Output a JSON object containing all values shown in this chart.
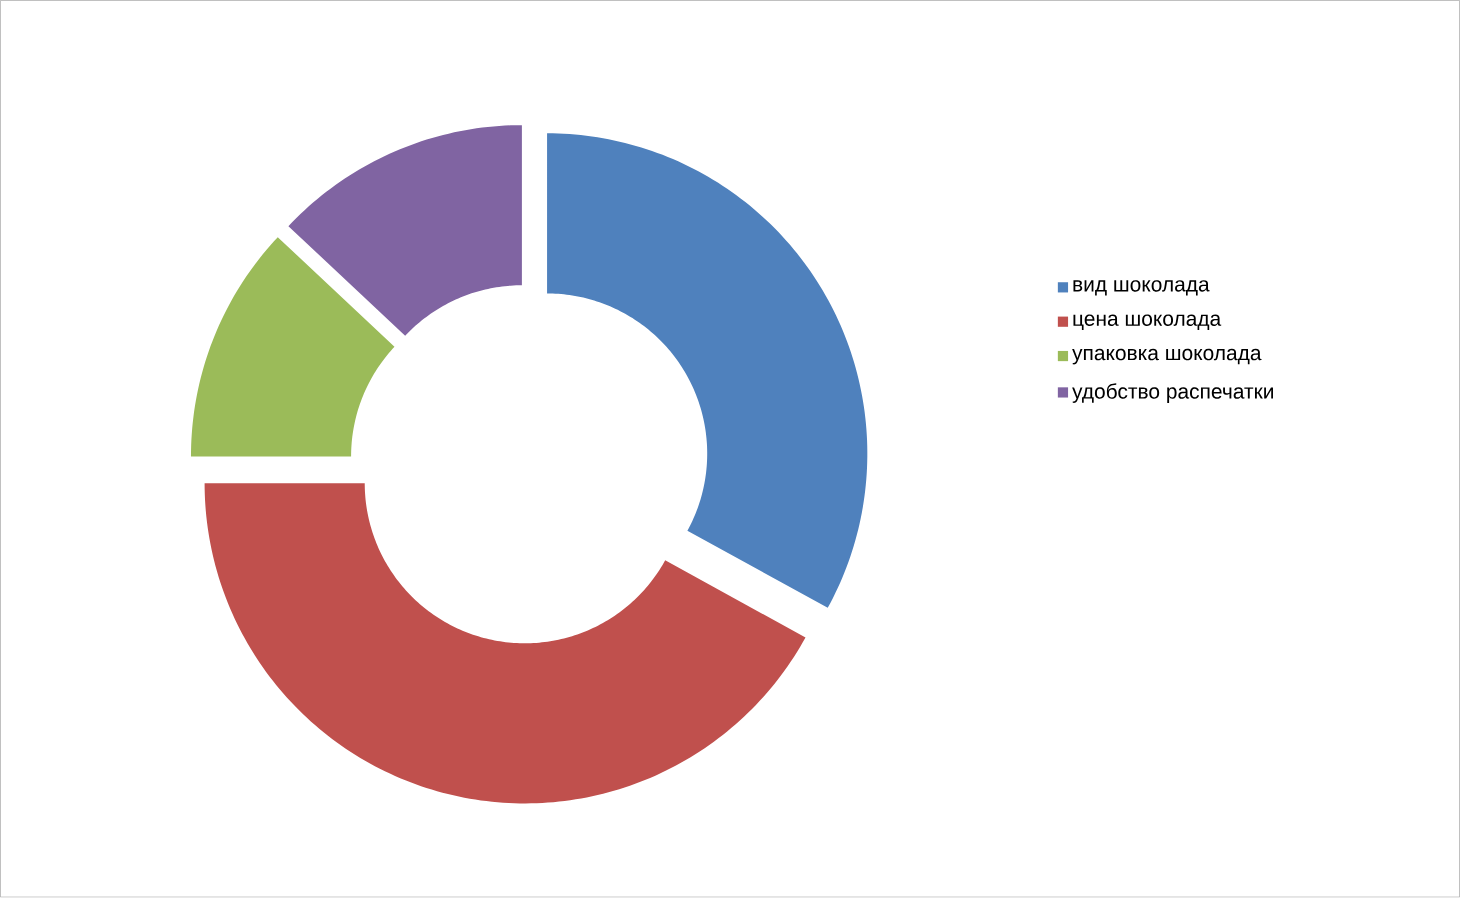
{
  "chart_data": {
    "type": "donut",
    "categories": [
      "вид шоколада",
      "цена шоколада",
      "упаковка шоколада",
      "удобство распечатки"
    ],
    "values": [
      33,
      42,
      12,
      13
    ],
    "colors": [
      "#4f81bd",
      "#c0504d",
      "#9bbb59",
      "#8064a2"
    ],
    "legend": "right"
  }
}
